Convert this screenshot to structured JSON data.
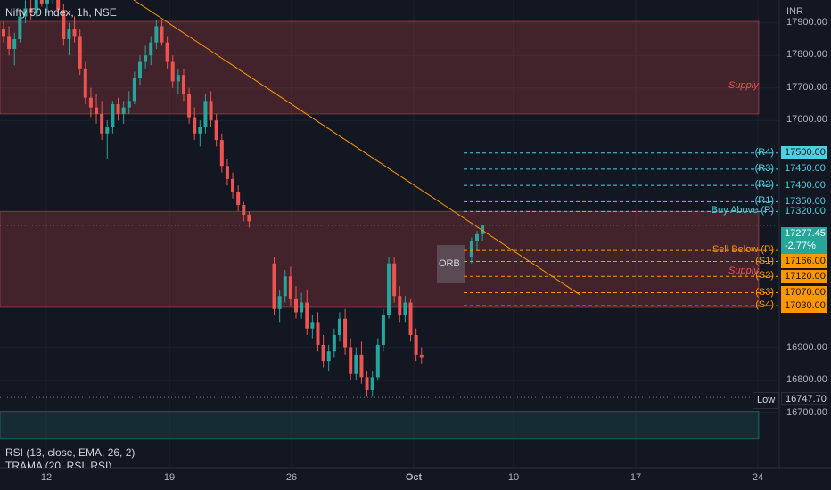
{
  "chart_header": {
    "title": "Nifty 50 Index, 1h, NSE",
    "currency": "INR"
  },
  "zones": [
    {
      "label": "Supply",
      "top": 17905,
      "bottom": 17620,
      "color": "#ef5350"
    },
    {
      "label": "Supply",
      "top": 17320,
      "bottom": 17025,
      "color": "#ef5350"
    },
    {
      "label": "",
      "top": 16705,
      "bottom": 16620,
      "color": "#26a69a"
    }
  ],
  "price_axis": {
    "min": 16600,
    "max": 18020,
    "ticks": [
      "17900.00",
      "17800.00",
      "17700.00",
      "17600.00",
      "16900.00",
      "16800.00",
      "16700.00"
    ],
    "tick_values": [
      17900,
      17800,
      17700,
      17600,
      16900,
      16800,
      16700
    ]
  },
  "pivot_levels": [
    {
      "name": "(R4)",
      "value": 17500,
      "price": "17500.00",
      "color": "#4dd0e1",
      "tag_bg": "#4dd0e1",
      "tag_fg": "#131722"
    },
    {
      "name": "(R3)",
      "value": 17450,
      "price": "17450.00",
      "color": "#4dd0e1",
      "tag_bg": "#131722",
      "tag_fg": "#4dd0e1"
    },
    {
      "name": "(R2)",
      "value": 17400,
      "price": "17400.00",
      "color": "#4dd0e1",
      "tag_bg": "#131722",
      "tag_fg": "#4dd0e1"
    },
    {
      "name": "(R1)",
      "value": 17350,
      "price": "17350.00",
      "color": "#4dd0e1",
      "tag_bg": "#131722",
      "tag_fg": "#4dd0e1"
    },
    {
      "name": "Buy Above (P)",
      "value": 17320,
      "price": "17320.00",
      "color": "#4dd0e1",
      "tag_bg": "#131722",
      "tag_fg": "#4dd0e1"
    },
    {
      "name": "Sell Below (P)",
      "value": 17200,
      "price": "17200.00",
      "color": "#ff9800",
      "tag_bg": "#ff9800",
      "tag_fg": "#131722"
    },
    {
      "name": "(S1)",
      "value": 17166,
      "price": "17166.00",
      "color": "#ff9800",
      "tag_bg": "#ff9800",
      "tag_fg": "#131722"
    },
    {
      "name": "(S2)",
      "value": 17120,
      "price": "17120.00",
      "color": "#ff9800",
      "tag_bg": "#ff9800",
      "tag_fg": "#131722"
    },
    {
      "name": "(S3)",
      "value": 17070,
      "price": "17070.00",
      "color": "#ff9800",
      "tag_bg": "#ff9800",
      "tag_fg": "#131722"
    },
    {
      "name": "(S4)",
      "value": 17030,
      "price": "17030.00",
      "color": "#ff9800",
      "tag_bg": "#ff9800",
      "tag_fg": "#131722"
    }
  ],
  "last_price": {
    "price": "17277.45",
    "change": "-2.77%",
    "value": 17277.45,
    "bg": "#26a69a"
  },
  "low_marker": {
    "label": "Low",
    "price": "16747.70",
    "value": 16747.7
  },
  "orb_label": "ORB",
  "indicators": [
    "RSI (13, close, EMA, 26, 2)",
    "TRAMA (20, RSI: RSI)"
  ],
  "time_axis": {
    "labels": [
      "12",
      "19",
      "26",
      "Oct",
      "10",
      "17",
      "24"
    ],
    "colors": {
      "up": "#26a69a",
      "down": "#ef5350",
      "trendline": "#ff9800"
    }
  },
  "chart_data": {
    "type": "candlestick",
    "series": [
      {
        "name": "Nifty 50 Index, 1h, NSE",
        "ohlc": [
          [
            17880,
            17905,
            17840,
            17860
          ],
          [
            17860,
            17890,
            17800,
            17820
          ],
          [
            17820,
            17870,
            17770,
            17850
          ],
          [
            17850,
            17930,
            17840,
            17920
          ],
          [
            17920,
            17970,
            17900,
            17945
          ],
          [
            17945,
            17980,
            17910,
            17930
          ],
          [
            17930,
            17990,
            17920,
            17975
          ],
          [
            17975,
            18010,
            17950,
            17960
          ],
          [
            17960,
            18000,
            17930,
            17985
          ],
          [
            17985,
            18015,
            17960,
            17995
          ],
          [
            17995,
            18010,
            17920,
            17940
          ],
          [
            17940,
            17960,
            17830,
            17850
          ],
          [
            17850,
            17900,
            17800,
            17880
          ],
          [
            17880,
            17920,
            17840,
            17860
          ],
          [
            17860,
            17880,
            17740,
            17760
          ],
          [
            17760,
            17780,
            17650,
            17670
          ],
          [
            17670,
            17700,
            17610,
            17640
          ],
          [
            17640,
            17680,
            17590,
            17620
          ],
          [
            17620,
            17660,
            17540,
            17560
          ],
          [
            17560,
            17600,
            17480,
            17580
          ],
          [
            17580,
            17660,
            17560,
            17650
          ],
          [
            17650,
            17670,
            17600,
            17620
          ],
          [
            17620,
            17660,
            17590,
            17640
          ],
          [
            17640,
            17690,
            17620,
            17660
          ],
          [
            17660,
            17750,
            17650,
            17730
          ],
          [
            17730,
            17800,
            17710,
            17780
          ],
          [
            17780,
            17830,
            17760,
            17800
          ],
          [
            17800,
            17860,
            17770,
            17840
          ],
          [
            17840,
            17910,
            17820,
            17890
          ],
          [
            17890,
            17910,
            17830,
            17840
          ],
          [
            17840,
            17860,
            17760,
            17780
          ],
          [
            17780,
            17800,
            17700,
            17720
          ],
          [
            17720,
            17760,
            17680,
            17740
          ],
          [
            17740,
            17760,
            17660,
            17680
          ],
          [
            17680,
            17700,
            17590,
            17610
          ],
          [
            17610,
            17640,
            17540,
            17560
          ],
          [
            17560,
            17600,
            17520,
            17580
          ],
          [
            17580,
            17680,
            17560,
            17660
          ],
          [
            17660,
            17690,
            17580,
            17600
          ],
          [
            17600,
            17620,
            17520,
            17540
          ],
          [
            17540,
            17560,
            17440,
            17460
          ],
          [
            17460,
            17480,
            17400,
            17420
          ],
          [
            17420,
            17440,
            17360,
            17380
          ],
          [
            17380,
            17400,
            17320,
            17340
          ],
          [
            17340,
            17350,
            17290,
            17310
          ],
          [
            17310,
            17320,
            17270,
            17290
          ],
          [
            17160,
            17180,
            17000,
            17020
          ],
          [
            17020,
            17080,
            16980,
            17060
          ],
          [
            17060,
            17140,
            17040,
            17120
          ],
          [
            17120,
            17150,
            17030,
            17050
          ],
          [
            17050,
            17090,
            16990,
            17010
          ],
          [
            17010,
            17070,
            16990,
            17040
          ],
          [
            17040,
            17080,
            16940,
            16960
          ],
          [
            16960,
            17000,
            16930,
            16980
          ],
          [
            16980,
            17010,
            16890,
            16910
          ],
          [
            16910,
            16940,
            16840,
            16860
          ],
          [
            16860,
            16910,
            16830,
            16890
          ],
          [
            16890,
            16960,
            16870,
            16940
          ],
          [
            16940,
            17010,
            16920,
            16990
          ],
          [
            16990,
            17020,
            16880,
            16900
          ],
          [
            16900,
            16930,
            16800,
            16820
          ],
          [
            16820,
            16900,
            16800,
            16880
          ],
          [
            16880,
            16920,
            16790,
            16810
          ],
          [
            16810,
            16830,
            16750,
            16770
          ],
          [
            16770,
            16830,
            16750,
            16810
          ],
          [
            16810,
            16930,
            16800,
            16910
          ],
          [
            16910,
            17020,
            16890,
            17000
          ],
          [
            17000,
            17180,
            16990,
            17160
          ],
          [
            17160,
            17180,
            17040,
            17060
          ],
          [
            17060,
            17090,
            16980,
            17000
          ],
          [
            17000,
            17060,
            16980,
            17040
          ],
          [
            17040,
            17050,
            16920,
            16940
          ],
          [
            16940,
            16960,
            16860,
            16880
          ],
          [
            16880,
            16900,
            16850,
            16870
          ],
          [
            17180,
            17240,
            17160,
            17230
          ],
          [
            17230,
            17260,
            17200,
            17250
          ],
          [
            17250,
            17280,
            17230,
            17277
          ]
        ]
      }
    ],
    "ylim": [
      16600,
      18020
    ],
    "x_ticks": [
      "12",
      "19",
      "26",
      "Oct",
      "10",
      "17",
      "24"
    ],
    "grid": true
  }
}
